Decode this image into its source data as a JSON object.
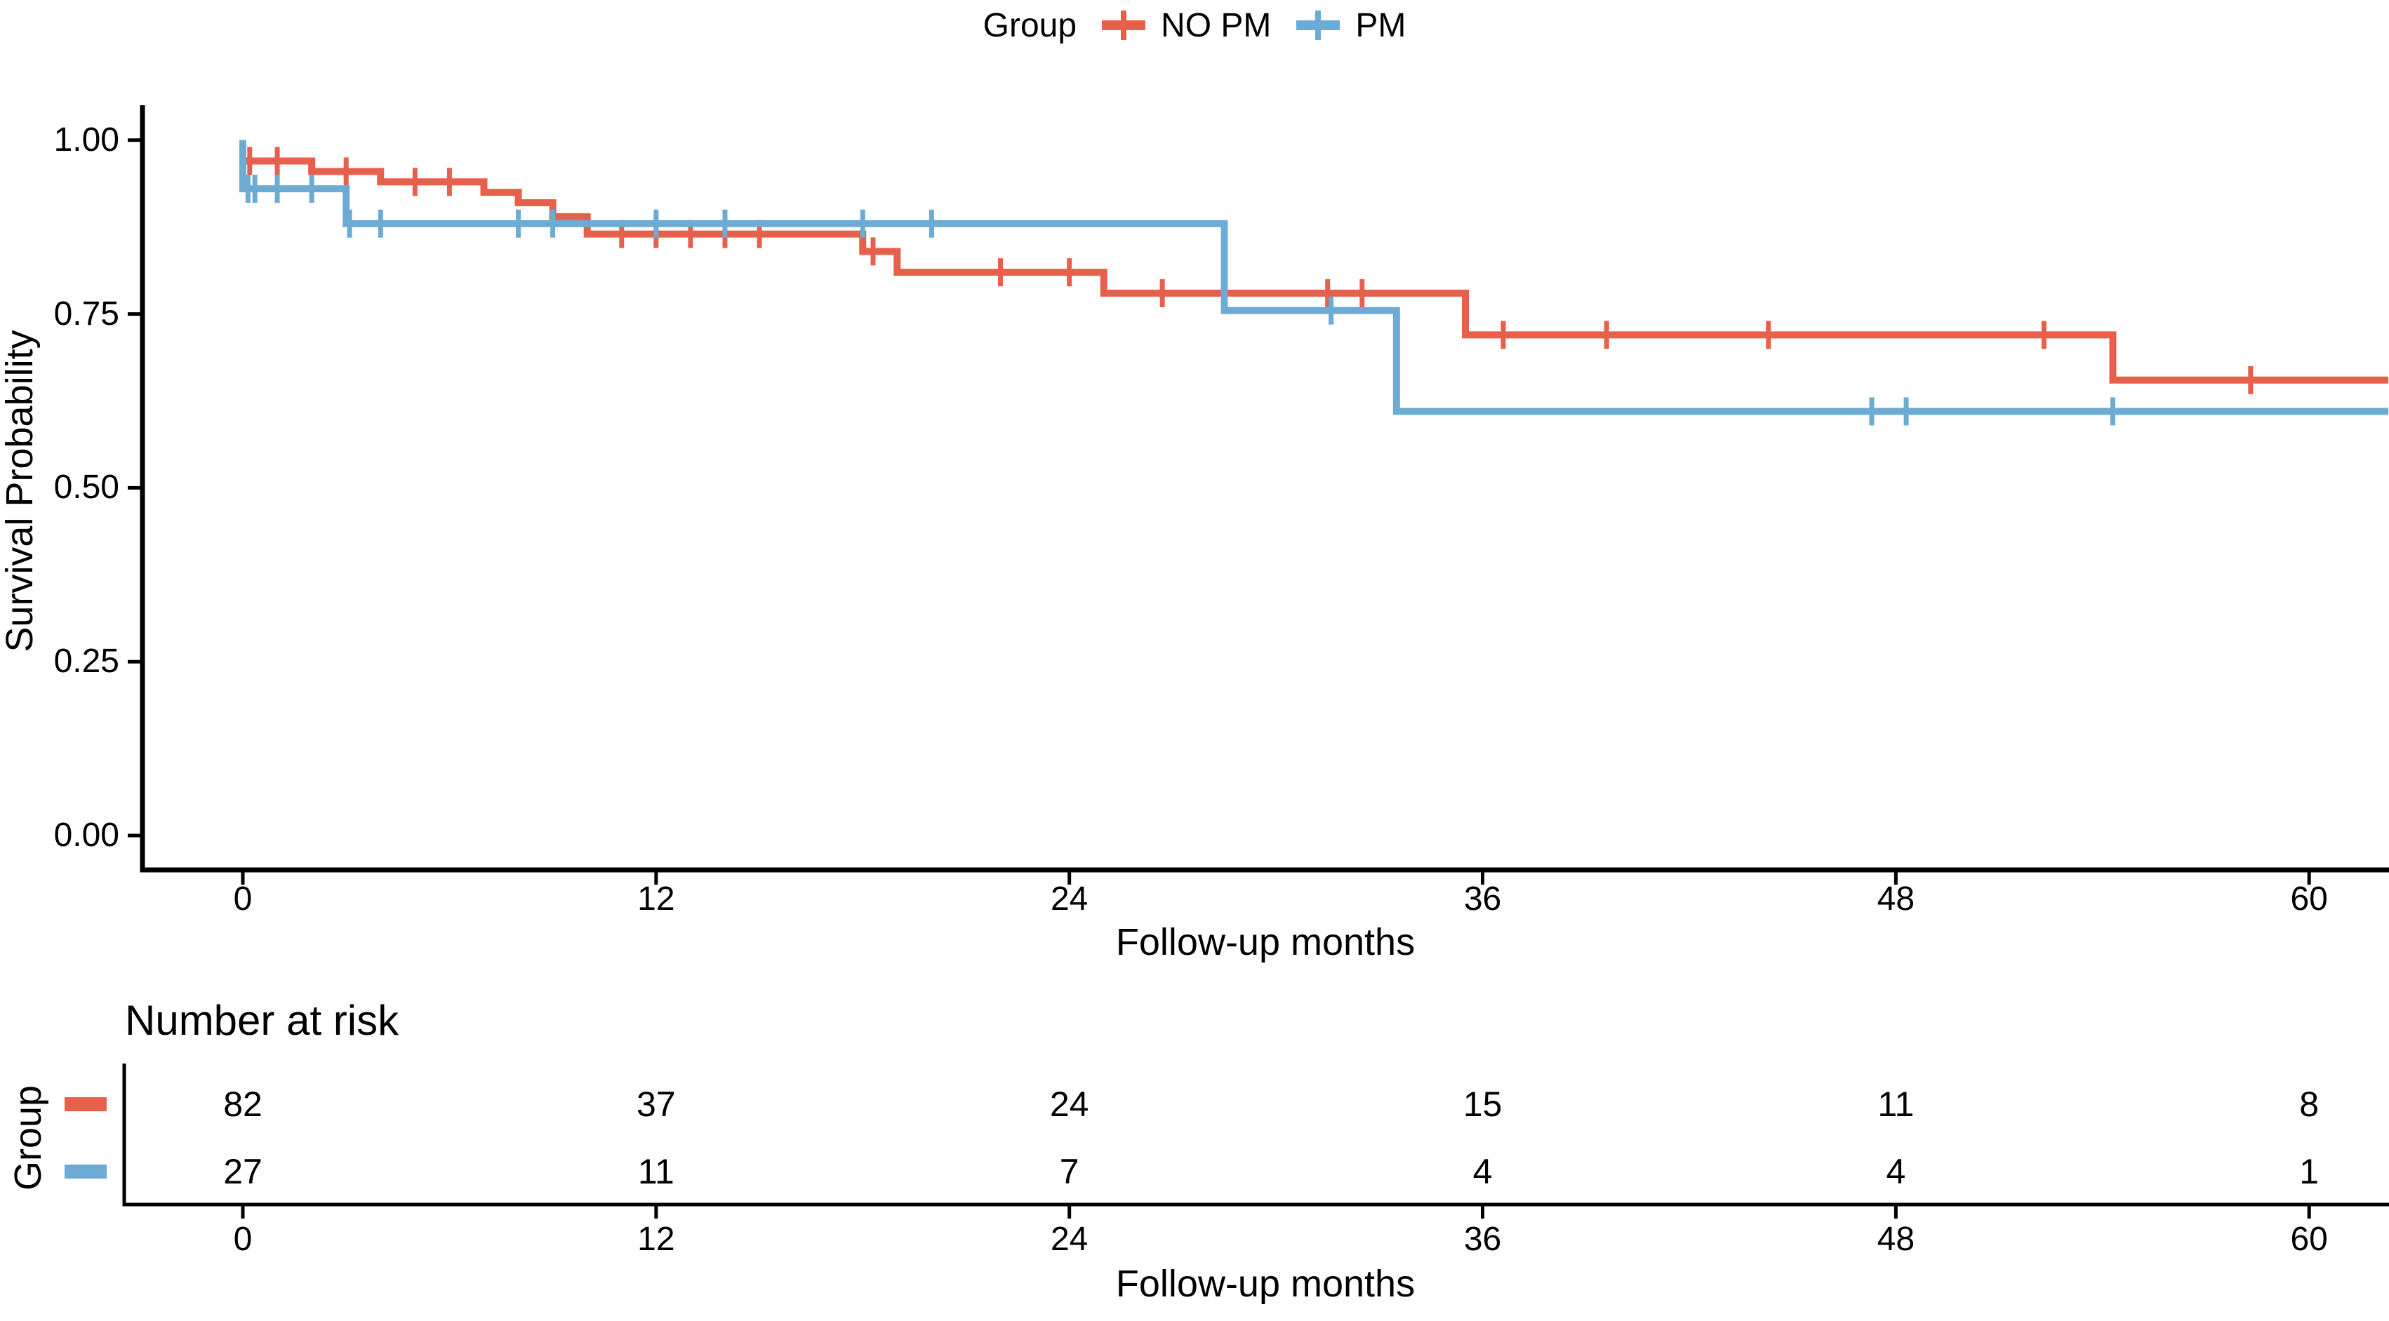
{
  "legend": {
    "title": "Group",
    "items": [
      {
        "label": "NO PM",
        "color": "#E7604C"
      },
      {
        "label": "PM",
        "color": "#6CACD4"
      }
    ]
  },
  "plot": {
    "y_axis_title": "Survival Probability",
    "x_axis_title": "Follow-up months",
    "y_tick_labels": [
      "0.00",
      "0.25",
      "0.50",
      "0.75",
      "1.00"
    ],
    "y_tick_values": [
      0,
      0.25,
      0.5,
      0.75,
      1
    ],
    "x_tick_labels": [
      "0",
      "12",
      "24",
      "36",
      "48",
      "60"
    ],
    "x_tick_values": [
      0,
      12,
      24,
      36,
      48,
      60
    ]
  },
  "risk_table": {
    "title": "Number at risk",
    "axis_label": "Group",
    "x_axis_title": "Follow-up months",
    "x_tick_labels": [
      "0",
      "12",
      "24",
      "36",
      "48",
      "60"
    ],
    "x_tick_values": [
      0,
      12,
      24,
      36,
      48,
      60
    ],
    "rows": [
      {
        "group": "NO PM",
        "color": "#E7604C",
        "values": [
          "82",
          "37",
          "24",
          "15",
          "11",
          "8"
        ]
      },
      {
        "group": "PM",
        "color": "#6CACD4",
        "values": [
          "27",
          "11",
          "7",
          "4",
          "4",
          "1"
        ]
      }
    ]
  },
  "chart_data": {
    "type": "line",
    "subtype": "kaplan_meier_step",
    "title": "",
    "xlabel": "Follow-up months",
    "ylabel": "Survival Probability",
    "xlim": [
      0,
      62.3
    ],
    "ylim": [
      0,
      1
    ],
    "grid": false,
    "legend_position": "top",
    "x_ticks": [
      0,
      12,
      24,
      36,
      48,
      60
    ],
    "y_ticks": [
      0,
      0.25,
      0.5,
      0.75,
      1
    ],
    "series": [
      {
        "name": "NO PM",
        "color": "#E7604C",
        "n_at_risk": [
          82,
          37,
          24,
          15,
          11,
          8
        ],
        "steps": [
          [
            0,
            1.0
          ],
          [
            0,
            0.97
          ],
          [
            2,
            0.955
          ],
          [
            4,
            0.94
          ],
          [
            7,
            0.925
          ],
          [
            8,
            0.91
          ],
          [
            9,
            0.89
          ],
          [
            10,
            0.865
          ],
          [
            18,
            0.84
          ],
          [
            19,
            0.81
          ],
          [
            25,
            0.78
          ],
          [
            35.5,
            0.72
          ],
          [
            54.3,
            0.655
          ],
          [
            62.3,
            0.655
          ]
        ],
        "censor_marks": [
          [
            0.2,
            0.97
          ],
          [
            1,
            0.97
          ],
          [
            3,
            0.955
          ],
          [
            5,
            0.94
          ],
          [
            6,
            0.94
          ],
          [
            11,
            0.865
          ],
          [
            12,
            0.865
          ],
          [
            13,
            0.865
          ],
          [
            14,
            0.865
          ],
          [
            15,
            0.865
          ],
          [
            18.3,
            0.84
          ],
          [
            22,
            0.81
          ],
          [
            24,
            0.81
          ],
          [
            26.7,
            0.78
          ],
          [
            31.5,
            0.78
          ],
          [
            32.5,
            0.78
          ],
          [
            36.6,
            0.72
          ],
          [
            39.6,
            0.72
          ],
          [
            44.3,
            0.72
          ],
          [
            52.3,
            0.72
          ],
          [
            58.3,
            0.655
          ]
        ]
      },
      {
        "name": "PM",
        "color": "#6CACD4",
        "n_at_risk": [
          27,
          11,
          7,
          4,
          4,
          1
        ],
        "steps": [
          [
            0,
            1.0
          ],
          [
            0,
            0.93
          ],
          [
            3,
            0.88
          ],
          [
            28.5,
            0.755
          ],
          [
            33.5,
            0.61
          ],
          [
            62.3,
            0.61
          ]
        ],
        "censor_marks": [
          [
            0.15,
            0.93
          ],
          [
            0.35,
            0.93
          ],
          [
            1,
            0.93
          ],
          [
            2,
            0.93
          ],
          [
            3.1,
            0.88
          ],
          [
            4,
            0.88
          ],
          [
            8,
            0.88
          ],
          [
            9,
            0.88
          ],
          [
            12,
            0.88
          ],
          [
            14,
            0.88
          ],
          [
            18,
            0.88
          ],
          [
            20,
            0.88
          ],
          [
            31.6,
            0.755
          ],
          [
            47.3,
            0.61
          ],
          [
            48.3,
            0.61
          ],
          [
            54.3,
            0.61
          ]
        ]
      }
    ]
  }
}
